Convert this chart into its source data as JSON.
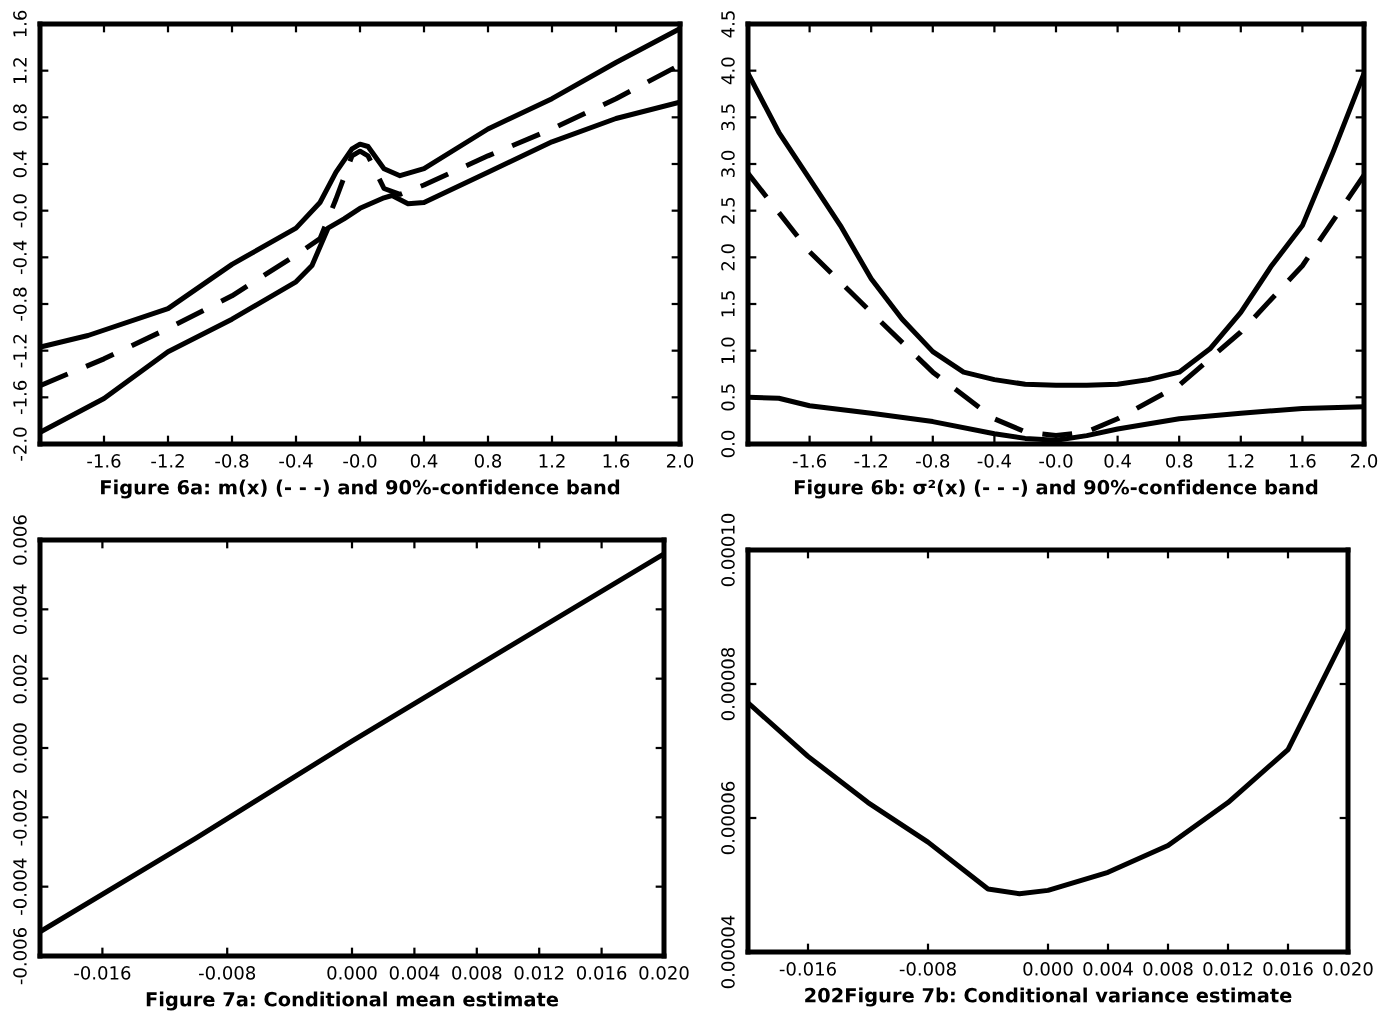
{
  "chart_data": [
    {
      "type": "line",
      "xlabel": "Figure 6a: m(x) (- - -) and 90%-confidence band",
      "xlim": [
        -2.0,
        2.0
      ],
      "ylim": [
        -2.0,
        1.6
      ],
      "xticks": [
        -1.6,
        -1.2,
        -0.8,
        -0.4,
        {
          "value": 0,
          "label": "-0.0"
        },
        0.4,
        0.8,
        1.2,
        1.6,
        {
          "value": 2,
          "label": "2.0"
        }
      ],
      "yticks": [
        {
          "value": -2,
          "label": "-2.0"
        },
        -1.6,
        -1.2,
        -0.8,
        -0.4,
        {
          "value": 0,
          "label": "-0.0"
        },
        0.4,
        0.8,
        1.2,
        1.6
      ],
      "series": [
        {
          "color": "#000000",
          "line_style": "solid",
          "x": [
            -2,
            -1.7,
            -1.2,
            -0.8,
            -0.4,
            -0.25,
            -0.15,
            -0.05,
            0,
            0.05,
            0.15,
            0.25,
            0.4,
            0.8,
            1.2,
            1.6,
            2.0
          ],
          "values": [
            -1.17,
            -1.07,
            -0.84,
            -0.46,
            -0.15,
            0.07,
            0.33,
            0.53,
            0.57,
            0.55,
            0.36,
            0.3,
            0.36,
            0.7,
            0.96,
            1.27,
            1.56
          ]
        },
        {
          "color": "#000000",
          "line_style": "dashed",
          "x": [
            -2,
            -1.6,
            -1.2,
            -0.8,
            -0.4,
            -0.25,
            -0.15,
            -0.05,
            0,
            0.05,
            0.15,
            0.25,
            0.4,
            0.8,
            1.2,
            1.6,
            2.0
          ],
          "values": [
            -1.5,
            -1.27,
            -1.01,
            -0.73,
            -0.38,
            -0.24,
            0.1,
            0.47,
            0.51,
            0.47,
            0.19,
            0.14,
            0.22,
            0.47,
            0.7,
            0.96,
            1.25
          ]
        },
        {
          "color": "#000000",
          "line_style": "solid",
          "x": [
            -2,
            -1.6,
            -1.2,
            -0.8,
            -0.4,
            -0.3,
            -0.2,
            -0.1,
            0,
            0.15,
            0.2,
            0.3,
            0.4,
            0.8,
            1.2,
            1.6,
            2.0
          ],
          "values": [
            -1.9,
            -1.61,
            -1.21,
            -0.93,
            -0.61,
            -0.47,
            -0.15,
            -0.07,
            0.02,
            0.11,
            0.13,
            0.06,
            0.07,
            0.33,
            0.59,
            0.79,
            0.93
          ]
        }
      ]
    },
    {
      "type": "line",
      "xlabel": "Figure 6b: σ²(x) (- - -) and 90%-confidence band",
      "xlim": [
        -2.0,
        2.0
      ],
      "ylim": [
        0,
        4.5
      ],
      "xticks": [
        -1.6,
        -1.2,
        -0.8,
        -0.4,
        {
          "value": 0,
          "label": "-0.0"
        },
        0.4,
        0.8,
        1.2,
        1.6,
        {
          "value": 2,
          "label": "2.0"
        }
      ],
      "yticks": [
        {
          "value": 0,
          "label": "0.0"
        },
        0.5,
        {
          "value": 1,
          "label": "1.0"
        },
        1.5,
        {
          "value": 2,
          "label": "2.0"
        },
        2.5,
        {
          "value": 3,
          "label": "3.0"
        },
        3.5,
        {
          "value": 4,
          "label": "4.0"
        },
        4.5
      ],
      "series": [
        {
          "color": "#000000",
          "line_style": "solid",
          "x": [
            -2,
            -1.8,
            -1.6,
            -1.4,
            -1.2,
            -1.0,
            -0.8,
            -0.6,
            -0.4,
            -0.2,
            0,
            0.2,
            0.4,
            0.6,
            0.8,
            1.0,
            1.2,
            1.4,
            1.6,
            1.8,
            2.0
          ],
          "values": [
            3.97,
            3.34,
            2.84,
            2.34,
            1.77,
            1.34,
            0.99,
            0.77,
            0.69,
            0.64,
            0.63,
            0.63,
            0.64,
            0.69,
            0.77,
            1.02,
            1.41,
            1.91,
            2.34,
            3.13,
            3.97
          ]
        },
        {
          "color": "#000000",
          "line_style": "dashed",
          "x": [
            -2,
            -1.6,
            -1.2,
            -0.8,
            -0.4,
            -0.2,
            0,
            0.2,
            0.4,
            0.8,
            1.2,
            1.6,
            2.0
          ],
          "values": [
            2.9,
            2.06,
            1.41,
            0.77,
            0.27,
            0.13,
            0.09,
            0.13,
            0.27,
            0.63,
            1.2,
            1.91,
            2.88
          ]
        },
        {
          "color": "#000000",
          "line_style": "solid",
          "x": [
            -2,
            -1.8,
            -1.6,
            -1.2,
            -0.8,
            -0.4,
            -0.2,
            0,
            0.2,
            0.4,
            0.8,
            1.2,
            1.6,
            2.0
          ],
          "values": [
            0.5,
            0.49,
            0.41,
            0.33,
            0.24,
            0.11,
            0.06,
            0.04,
            0.09,
            0.16,
            0.27,
            0.33,
            0.38,
            0.4
          ]
        }
      ]
    },
    {
      "type": "line",
      "xlabel": "Figure 7a: Conditional mean estimate",
      "xlim": [
        -0.02,
        0.02
      ],
      "ylim": [
        -0.006,
        0.006
      ],
      "xticks": [
        -0.016,
        -0.008,
        {
          "value": 0,
          "label": "0.000"
        },
        0.004,
        0.008,
        0.012,
        0.016,
        {
          "value": 0.02,
          "label": "0.020"
        }
      ],
      "yticks": [
        -0.006,
        -0.004,
        -0.002,
        {
          "value": 0,
          "label": "0.000"
        },
        0.002,
        0.004,
        0.006
      ],
      "series": [
        {
          "color": "#000000",
          "line_style": "solid",
          "x": [
            -0.02,
            -0.01,
            0,
            0.01,
            0.02
          ],
          "values": [
            -0.0053,
            -0.0026,
            0.0002,
            0.0029,
            0.0056
          ]
        }
      ]
    },
    {
      "type": "line",
      "xlabel": "202Figure 7b: Conditional variance estimate",
      "xlim": [
        -0.02,
        0.02
      ],
      "ylim": [
        4e-05,
        0.0001
      ],
      "xticks": [
        -0.016,
        -0.008,
        {
          "value": 0,
          "label": "0.000"
        },
        0.004,
        0.008,
        0.012,
        0.016,
        {
          "value": 0.02,
          "label": "0.020"
        }
      ],
      "yticks": [
        {
          "value": 4e-05,
          "label": "0.00004"
        },
        {
          "value": 6e-05,
          "label": "0.00006"
        },
        {
          "value": 8e-05,
          "label": "0.00008"
        },
        {
          "value": 0.0001,
          "label": "0.00010"
        }
      ],
      "series": [
        {
          "color": "#000000",
          "line_style": "solid",
          "x": [
            -0.02,
            -0.016,
            -0.012,
            -0.008,
            -0.004,
            -0.0019,
            0,
            0.004,
            0.008,
            0.012,
            0.016,
            0.02
          ],
          "values": [
            7.72e-05,
            6.92e-05,
            6.23e-05,
            5.64e-05,
            4.94e-05,
            4.87e-05,
            4.92e-05,
            5.19e-05,
            5.59e-05,
            6.23e-05,
            7.02e-05,
            8.81e-05
          ]
        }
      ]
    }
  ]
}
